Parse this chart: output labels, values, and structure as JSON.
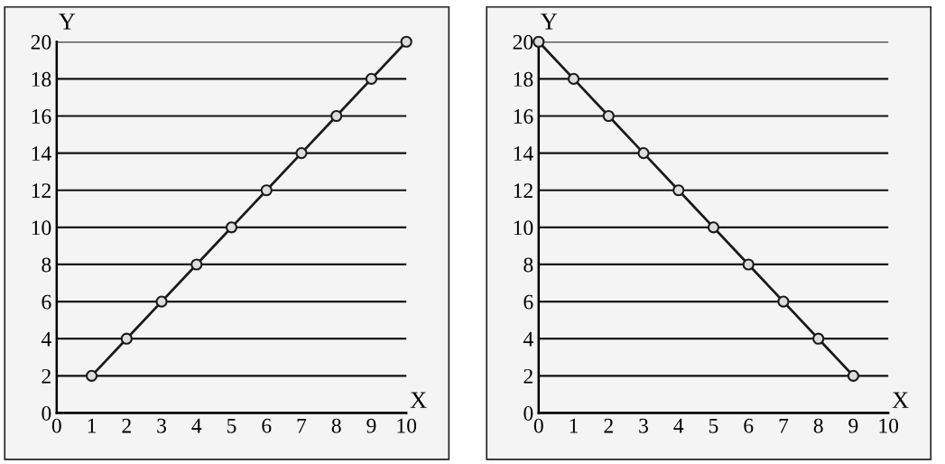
{
  "chart_data": [
    {
      "type": "line",
      "xlabel": "X",
      "ylabel": "Y",
      "x": [
        1,
        2,
        3,
        4,
        5,
        6,
        7,
        8,
        9,
        10
      ],
      "series": [
        {
          "color": "#1a1a1a",
          "values": [
            2,
            4,
            6,
            8,
            10,
            12,
            14,
            16,
            18,
            20
          ]
        }
      ],
      "xlim": [
        0,
        10
      ],
      "ylim": [
        0,
        20
      ],
      "xticks": [
        0,
        1,
        2,
        3,
        4,
        5,
        6,
        7,
        8,
        9,
        10
      ],
      "yticks": [
        0,
        2,
        4,
        6,
        8,
        10,
        12,
        14,
        16,
        18,
        20
      ],
      "grid": "y",
      "marker": "circle",
      "line_style": "solid",
      "legend": false
    },
    {
      "type": "line",
      "xlabel": "X",
      "ylabel": "Y",
      "x": [
        0,
        1,
        2,
        3,
        4,
        5,
        6,
        7,
        8,
        9
      ],
      "series": [
        {
          "color": "#1a1a1a",
          "values": [
            20,
            18,
            16,
            14,
            12,
            10,
            8,
            6,
            4,
            2
          ]
        }
      ],
      "xlim": [
        0,
        10
      ],
      "ylim": [
        0,
        20
      ],
      "xticks": [
        0,
        1,
        2,
        3,
        4,
        5,
        6,
        7,
        8,
        9,
        10
      ],
      "yticks": [
        0,
        2,
        4,
        6,
        8,
        10,
        12,
        14,
        16,
        18,
        20
      ],
      "grid": "y",
      "marker": "circle",
      "line_style": "solid",
      "legend": false
    }
  ]
}
